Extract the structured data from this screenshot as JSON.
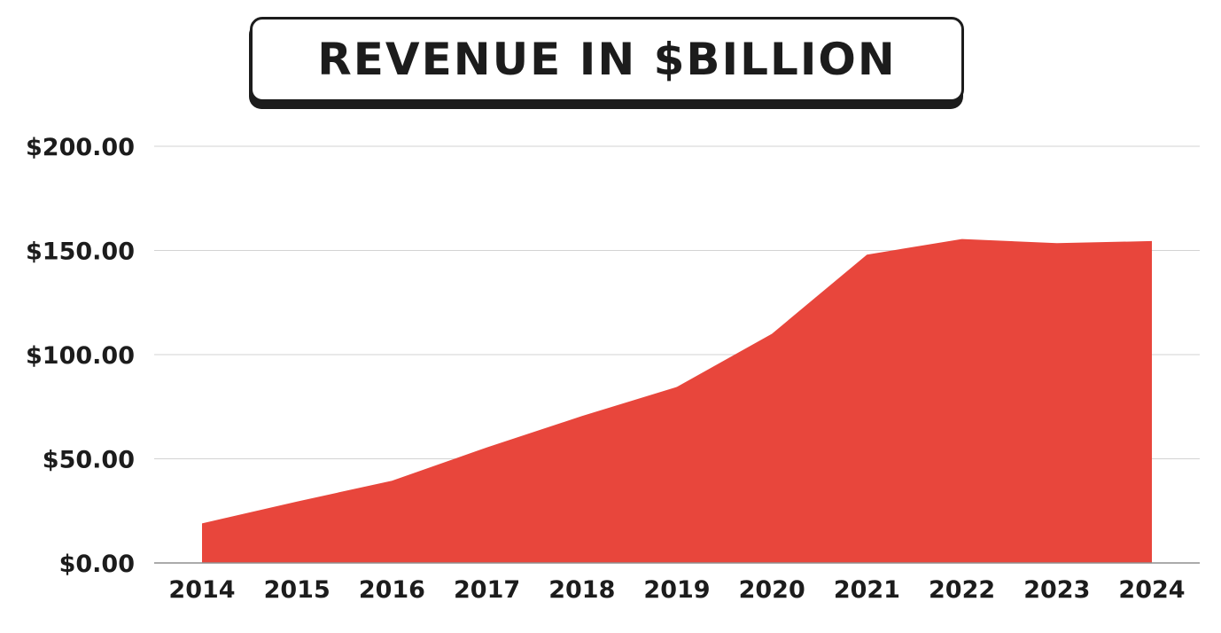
{
  "chart_data": {
    "type": "area",
    "title": "REVENUE IN $BILLION",
    "categories": [
      "2014",
      "2015",
      "2016",
      "2017",
      "2018",
      "2019",
      "2020",
      "2021",
      "2022",
      "2023",
      "2024"
    ],
    "values": [
      19,
      29.5,
      39.5,
      55.5,
      70.5,
      84.5,
      110,
      148,
      155.5,
      153.5,
      154.5
    ],
    "y_ticks": [
      0,
      50,
      100,
      150,
      200
    ],
    "y_tick_labels": [
      "$0.00",
      "$50.00",
      "$100.00",
      "$150.00",
      "$200.00"
    ],
    "ylim": [
      0,
      200
    ],
    "xlabel": "",
    "ylabel": "",
    "grid": true,
    "colors": {
      "area": "#e8463c",
      "gridline": "#d3d3d3",
      "axis": "#8f8f8f",
      "text": "#1c1c1c"
    }
  }
}
